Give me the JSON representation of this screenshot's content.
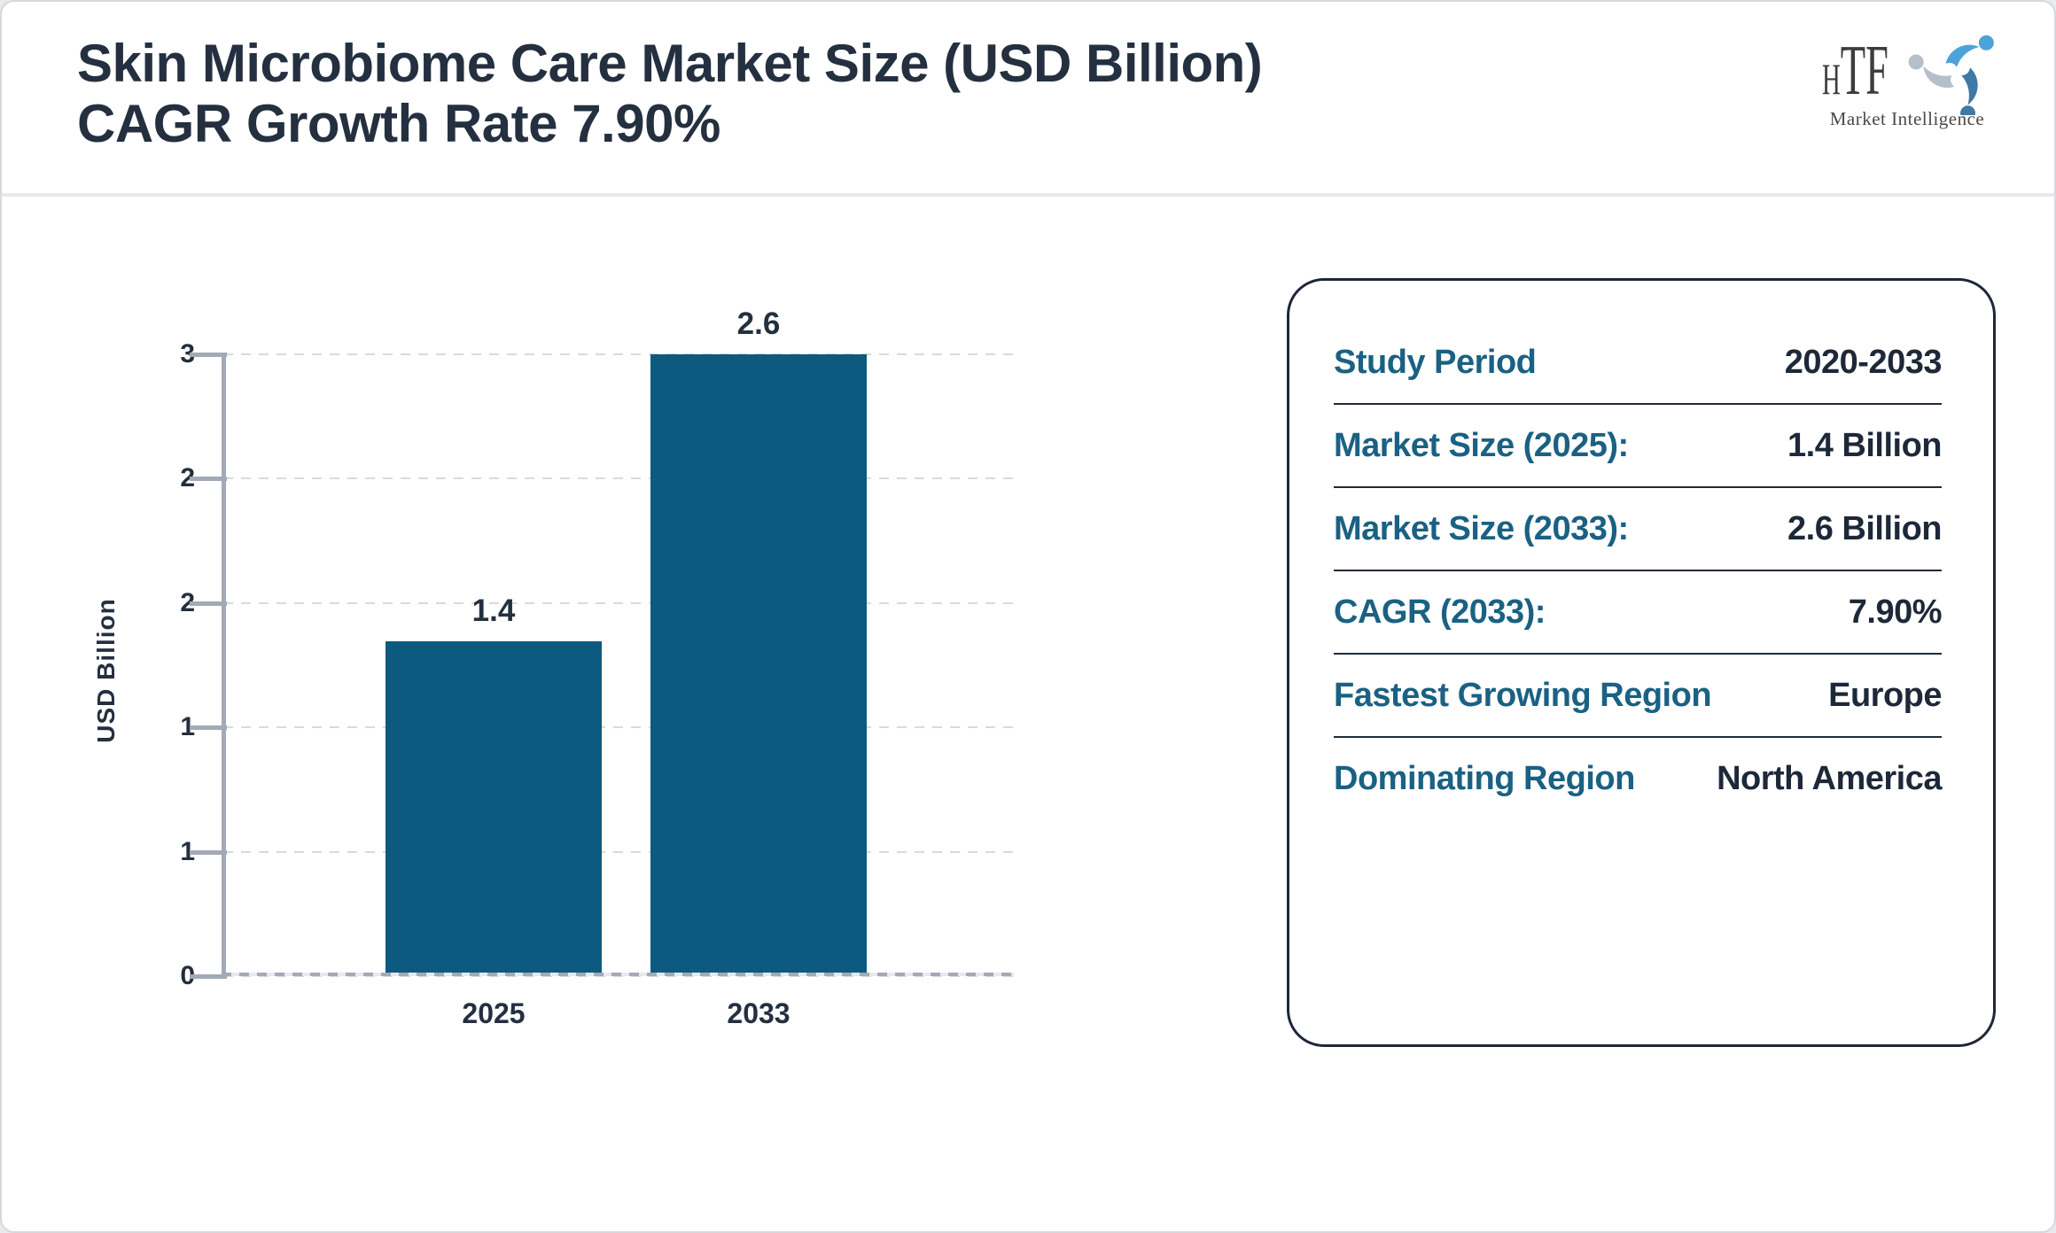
{
  "header": {
    "title_lines": [
      "Skin Microbiome Care Market Size (USD Billion)",
      "CAGR Growth Rate 7.90%"
    ],
    "logo": {
      "text": "HTF",
      "subtext": "Market Intelligence"
    }
  },
  "chart_data": {
    "type": "bar",
    "title": "Skin Microbiome Care Market Size (USD Billion) CAGR Growth Rate 7.90%",
    "categories": [
      "2025",
      "2033"
    ],
    "values": [
      1.4,
      2.6
    ],
    "bar_value_labels": [
      "1.4",
      "2.6"
    ],
    "xlabel": "",
    "ylabel": "USD Billion",
    "ylim": [
      0,
      2.6
    ],
    "y_tick_labels_top_to_bottom": [
      "3",
      "2",
      "2",
      "1",
      "1",
      "0"
    ],
    "grid": "horizontal dashed",
    "legend": "none",
    "bar_color": "#0d5a80"
  },
  "info_card": {
    "rows": [
      {
        "label": "Study Period",
        "value": "2020-2033"
      },
      {
        "label": "Market Size (2025):",
        "value": "1.4 Billion"
      },
      {
        "label": "Market Size (2033):",
        "value": "2.6 Billion"
      },
      {
        "label": "CAGR (2033):",
        "value": "7.90%"
      },
      {
        "label": "Fastest Growing Region",
        "value": "Europe"
      },
      {
        "label": "Dominating Region",
        "value": "North America"
      }
    ]
  },
  "colors": {
    "bar": "#0d5a80",
    "accent_label": "#1a6183",
    "dark_text": "#243040",
    "axis_gray": "#a2aab6",
    "gridline": "#dadada",
    "card_border": "#1e2738",
    "logo_lightblue": "#4da3d8",
    "logo_steelblue": "#4179a5",
    "logo_gray": "#b4bfca"
  }
}
